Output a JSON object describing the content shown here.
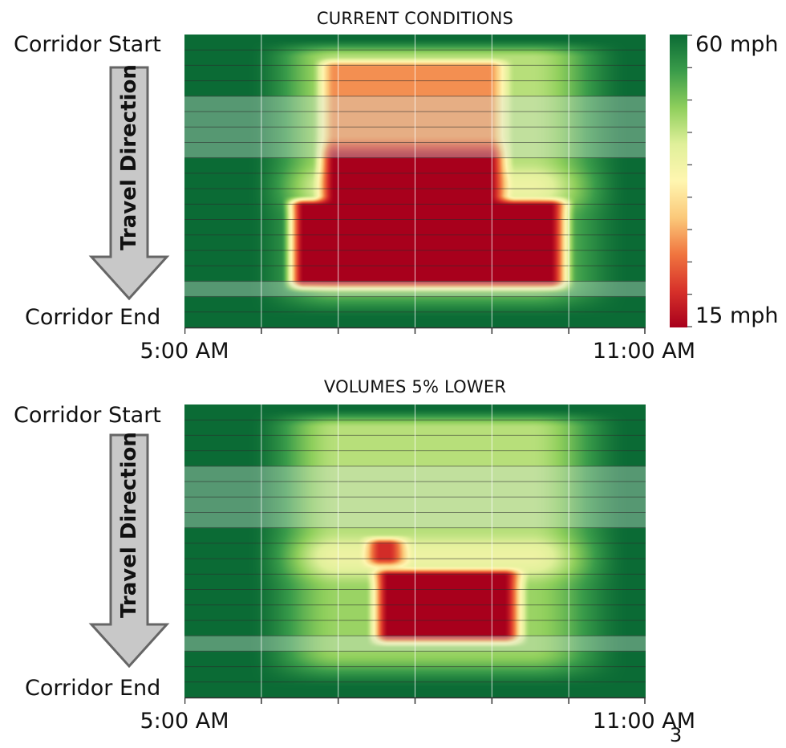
{
  "chart_data": [
    {
      "type": "heatmap",
      "title": "CURRENT CONDITIONS",
      "y_top_label": "Corridor Start",
      "y_bottom_label": "Corridor End",
      "direction_label": "Travel Direction",
      "x_start_label": "5:00 AM",
      "x_end_label": "11:00 AM",
      "x_range_hours": [
        5,
        11
      ],
      "segments": 19,
      "shaded_bands": [
        [
          4,
          8
        ],
        [
          16,
          17
        ]
      ],
      "free_flow_mph": 60,
      "congestion_zones": [
        {
          "hours": [
            6.9,
            9.0
          ],
          "segments": [
            2,
            11
          ],
          "min_mph": 15,
          "core_segments": [
            8,
            11
          ],
          "core_mph": 15,
          "upper_mph": 28
        },
        {
          "hours": [
            6.5,
            9.8
          ],
          "segments": [
            11,
            16
          ],
          "min_mph": 15
        }
      ]
    },
    {
      "type": "heatmap",
      "title": "VOLUMES 5% LOWER",
      "y_top_label": "Corridor Start",
      "y_bottom_label": "Corridor End",
      "direction_label": "Travel Direction",
      "x_start_label": "5:00 AM",
      "x_end_label": "11:00 AM",
      "x_range_hours": [
        5,
        11
      ],
      "segments": 19,
      "shaded_bands": [
        [
          4,
          8
        ],
        [
          15,
          16
        ]
      ],
      "free_flow_mph": 60,
      "congestion_zones": [
        {
          "hours": [
            7.6,
            9.2
          ],
          "segments": [
            11,
            15
          ],
          "min_mph": 15
        },
        {
          "hours": [
            7.5,
            7.7
          ],
          "segments": [
            9,
            10
          ],
          "min_mph": 20
        }
      ]
    }
  ],
  "legend": {
    "max_label": "60 mph",
    "min_label": "15 mph",
    "colors": [
      "#0b6b35",
      "#3a9c4a",
      "#8fcf5c",
      "#e0f09a",
      "#fff6b0",
      "#fbc97a",
      "#f0753f",
      "#d7312a",
      "#a8001c"
    ]
  },
  "page_number": "3"
}
